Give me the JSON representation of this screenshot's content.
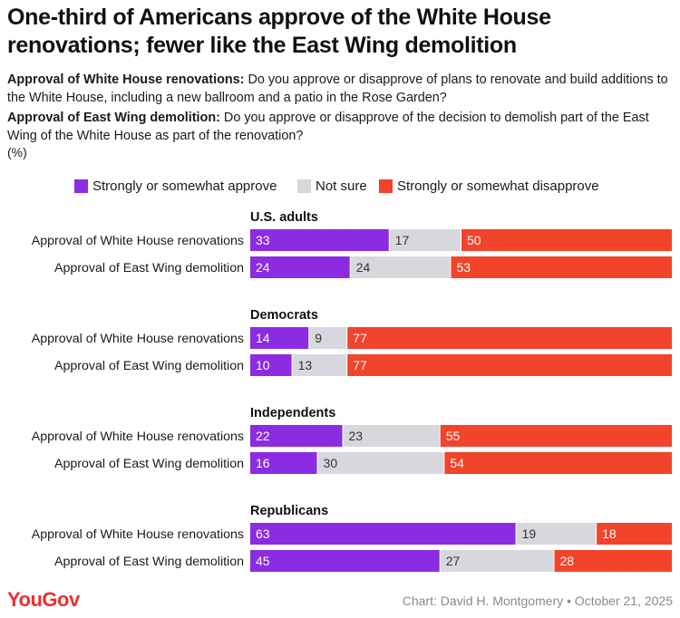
{
  "title": "One-third of Americans approve of the White House renovations; fewer like the East Wing demolition",
  "questions": [
    {
      "label": "Approval of White House renovations:",
      "text": " Do you approve or disapprove of plans to renovate and build additions to the White House, including a new ballroom and a patio in the Rose Garden?"
    },
    {
      "label": "Approval of East Wing demolition:",
      "text": " Do you approve or disapprove of the decision to demolish part of the East Wing of the White House as part of the renovation?"
    }
  ],
  "unit": "(%)",
  "colors": {
    "approve": "#8b2be2",
    "not_sure": "#d6d8de",
    "disapprove": "#f2432b"
  },
  "chart_data": {
    "type": "bar",
    "stacked": true,
    "orientation": "horizontal",
    "legend": [
      "Strongly or somewhat approve",
      "Not sure",
      "Strongly or somewhat disapprove"
    ],
    "legend_position": "top",
    "groups": [
      {
        "name": "U.S. adults",
        "rows": [
          {
            "label": "Approval of White House renovations",
            "values": [
              33,
              17,
              50
            ]
          },
          {
            "label": "Approval of East Wing demolition",
            "values": [
              24,
              24,
              53
            ]
          }
        ]
      },
      {
        "name": "Democrats",
        "rows": [
          {
            "label": "Approval of White House renovations",
            "values": [
              14,
              9,
              77
            ]
          },
          {
            "label": "Approval of East Wing demolition",
            "values": [
              10,
              13,
              77
            ]
          }
        ]
      },
      {
        "name": "Independents",
        "rows": [
          {
            "label": "Approval of White House renovations",
            "values": [
              22,
              23,
              55
            ]
          },
          {
            "label": "Approval of East Wing demolition",
            "values": [
              16,
              30,
              54
            ]
          }
        ]
      },
      {
        "name": "Republicans",
        "rows": [
          {
            "label": "Approval of White House renovations",
            "values": [
              63,
              19,
              18
            ]
          },
          {
            "label": "Approval of East Wing demolition",
            "values": [
              45,
              27,
              28
            ]
          }
        ]
      }
    ]
  },
  "footer": {
    "logo": "YouGov",
    "credit": "Chart: David H. Montgomery • October 21, 2025"
  }
}
